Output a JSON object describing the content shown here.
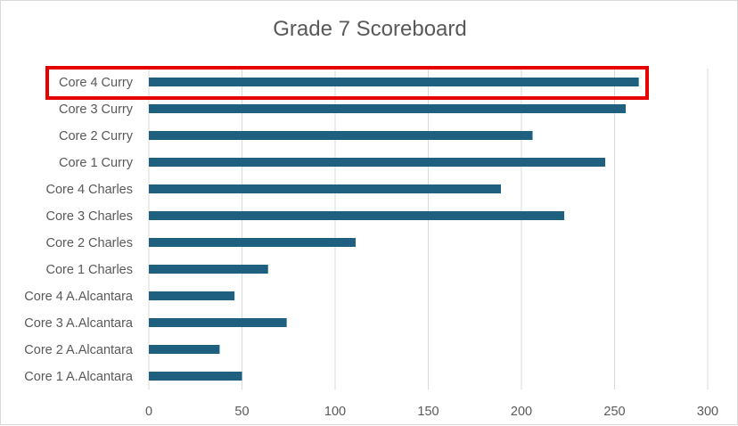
{
  "chart_data": {
    "type": "bar",
    "orientation": "horizontal",
    "title": "Grade 7 Scoreboard",
    "xlabel": "",
    "ylabel": "",
    "categories": [
      "Core 1 A.Alcantara",
      "Core 2 A.Alcantara",
      "Core 3 A.Alcantara",
      "Core 4 A.Alcantara",
      "Core 1 Charles",
      "Core 2 Charles",
      "Core 3 Charles",
      "Core 4 Charles",
      "Core 1 Curry",
      "Core 2 Curry",
      "Core 3 Curry",
      "Core 4 Curry"
    ],
    "values": [
      50,
      38,
      74,
      46,
      64,
      111,
      223,
      189,
      245,
      206,
      256,
      263
    ],
    "xlim": [
      0,
      300
    ],
    "xticks": [
      "0",
      "50",
      "100",
      "150",
      "200",
      "250",
      "300"
    ],
    "grid": "vertical",
    "legend": "none",
    "bar_color": "#1f5f7f",
    "highlighted_category": "Core 4 Curry",
    "highlight_color": "#e60000"
  }
}
